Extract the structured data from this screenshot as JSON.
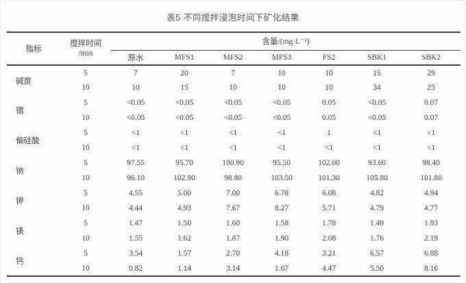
{
  "title": "表5 不同搅拌浸泡时间下矿化结果",
  "table": {
    "header": {
      "indicator": "指标",
      "stir_time_line1": "搅拌时间",
      "stir_time_line2": "/min",
      "content_group": "含量/(mg·L⁻¹)",
      "sample_columns": [
        "原水",
        "MFS1",
        "MFS2",
        "MFS3",
        "FS2",
        "SBK1",
        "SBK2"
      ]
    },
    "groups": [
      {
        "indicator": "碱度",
        "rows": [
          {
            "time": "5",
            "values": [
              "7",
              "20",
              "7",
              "10",
              "10",
              "15",
              "29"
            ]
          },
          {
            "time": "10",
            "values": [
              "10",
              "15",
              "10",
              "10",
              "10",
              "34",
              "25"
            ]
          }
        ]
      },
      {
        "indicator": "锶",
        "rows": [
          {
            "time": "5",
            "values": [
              "<0.05",
              "<0.05",
              "<0.05",
              "<0.05",
              "0.05",
              "<0.05",
              "0.07"
            ]
          },
          {
            "time": "10",
            "values": [
              "<0.05",
              "<0.05",
              "<0.05",
              "<0.05",
              "0.05",
              "<0.05",
              "0.07"
            ]
          }
        ]
      },
      {
        "indicator": "偏硅酸",
        "rows": [
          {
            "time": "5",
            "values": [
              "<1",
              "<1",
              "<1",
              "<1",
              "1",
              "<1",
              "<1"
            ]
          },
          {
            "time": "10",
            "values": [
              "<1",
              "<1",
              "<1",
              "<1",
              "<1",
              "<1",
              "<1"
            ]
          }
        ]
      },
      {
        "indicator": "钠",
        "rows": [
          {
            "time": "5",
            "values": [
              "97.55",
              "95.70",
              "100.90",
              "95.50",
              "102.00",
              "93.60",
              "98.40"
            ]
          },
          {
            "time": "10",
            "values": [
              "96.10",
              "102.90",
              "98.80",
              "103.50",
              "101.30",
              "105.80",
              "101.80"
            ]
          }
        ]
      },
      {
        "indicator": "钾",
        "rows": [
          {
            "time": "5",
            "values": [
              "4.55",
              "5.00",
              "7.00",
              "6.78",
              "6.08",
              "4.82",
              "4.94"
            ]
          },
          {
            "time": "10",
            "values": [
              "4.44",
              "4.93",
              "7.67",
              "8.27",
              "5.71",
              "4.79",
              "4.77"
            ]
          }
        ]
      },
      {
        "indicator": "镁",
        "rows": [
          {
            "time": "5",
            "values": [
              "1.47",
              "1.50",
              "1.60",
              "1.58",
              "1.78",
              "1.49",
              "1.93"
            ]
          },
          {
            "time": "10",
            "values": [
              "1.55",
              "1.62",
              "1.87",
              "1.90",
              "2.08",
              "1.76",
              "2.19"
            ]
          }
        ]
      },
      {
        "indicator": "钙",
        "rows": [
          {
            "time": "5",
            "values": [
              "3.54",
              "1.57",
              "2.70",
              "4.18",
              "3.21",
              "6.57",
              "6.88"
            ]
          },
          {
            "time": "10",
            "values": [
              "0.82",
              "1.14",
              "3.14",
              "1.67",
              "4.47",
              "5.50",
              "8.16"
            ]
          }
        ]
      }
    ]
  }
}
